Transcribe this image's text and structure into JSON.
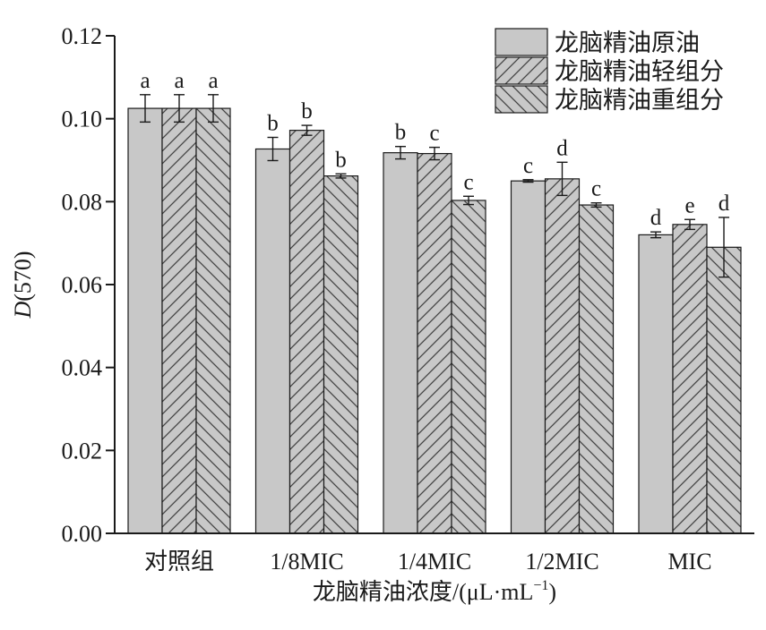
{
  "chart_data": {
    "type": "bar",
    "categories": [
      "对照组",
      "1/8MIC",
      "1/4MIC",
      "1/2MIC",
      "MIC"
    ],
    "series": [
      {
        "name": "龙脑精油原油",
        "pattern": "solid",
        "values": [
          0.1025,
          0.0927,
          0.0918,
          0.085,
          0.072
        ],
        "errors": [
          0.0033,
          0.0028,
          0.0015,
          0.0003,
          0.0007
        ],
        "labels": [
          "a",
          "b",
          "b",
          "c",
          "d"
        ]
      },
      {
        "name": "龙脑精油轻组分",
        "pattern": "hatch-forward",
        "values": [
          0.1025,
          0.0972,
          0.0916,
          0.0855,
          0.0745
        ],
        "errors": [
          0.0033,
          0.0012,
          0.0015,
          0.004,
          0.0012
        ],
        "labels": [
          "a",
          "b",
          "c",
          "d",
          "e"
        ]
      },
      {
        "name": "龙脑精油重组分",
        "pattern": "hatch-back",
        "values": [
          0.1025,
          0.0862,
          0.0803,
          0.0792,
          0.069
        ],
        "errors": [
          0.0033,
          0.0005,
          0.001,
          0.0005,
          0.0072
        ],
        "labels": [
          "a",
          "b",
          "c",
          "c",
          "d"
        ]
      }
    ],
    "ylabel_italic": "D",
    "ylabel_rest": "(570)",
    "xlabel_main": "龙脑精油浓度/(μL·mL",
    "xlabel_sup": "−1",
    "xlabel_close": ")",
    "ylim": [
      0,
      0.12
    ],
    "yticks": [
      "0.00",
      "0.02",
      "0.04",
      "0.06",
      "0.08",
      "0.10",
      "0.12"
    ],
    "grid": false,
    "legend_position": "top-right",
    "colors": {
      "bar_fill": "#c8c8c8",
      "hatch": "#444444",
      "stroke": "#1a1a1a"
    }
  }
}
